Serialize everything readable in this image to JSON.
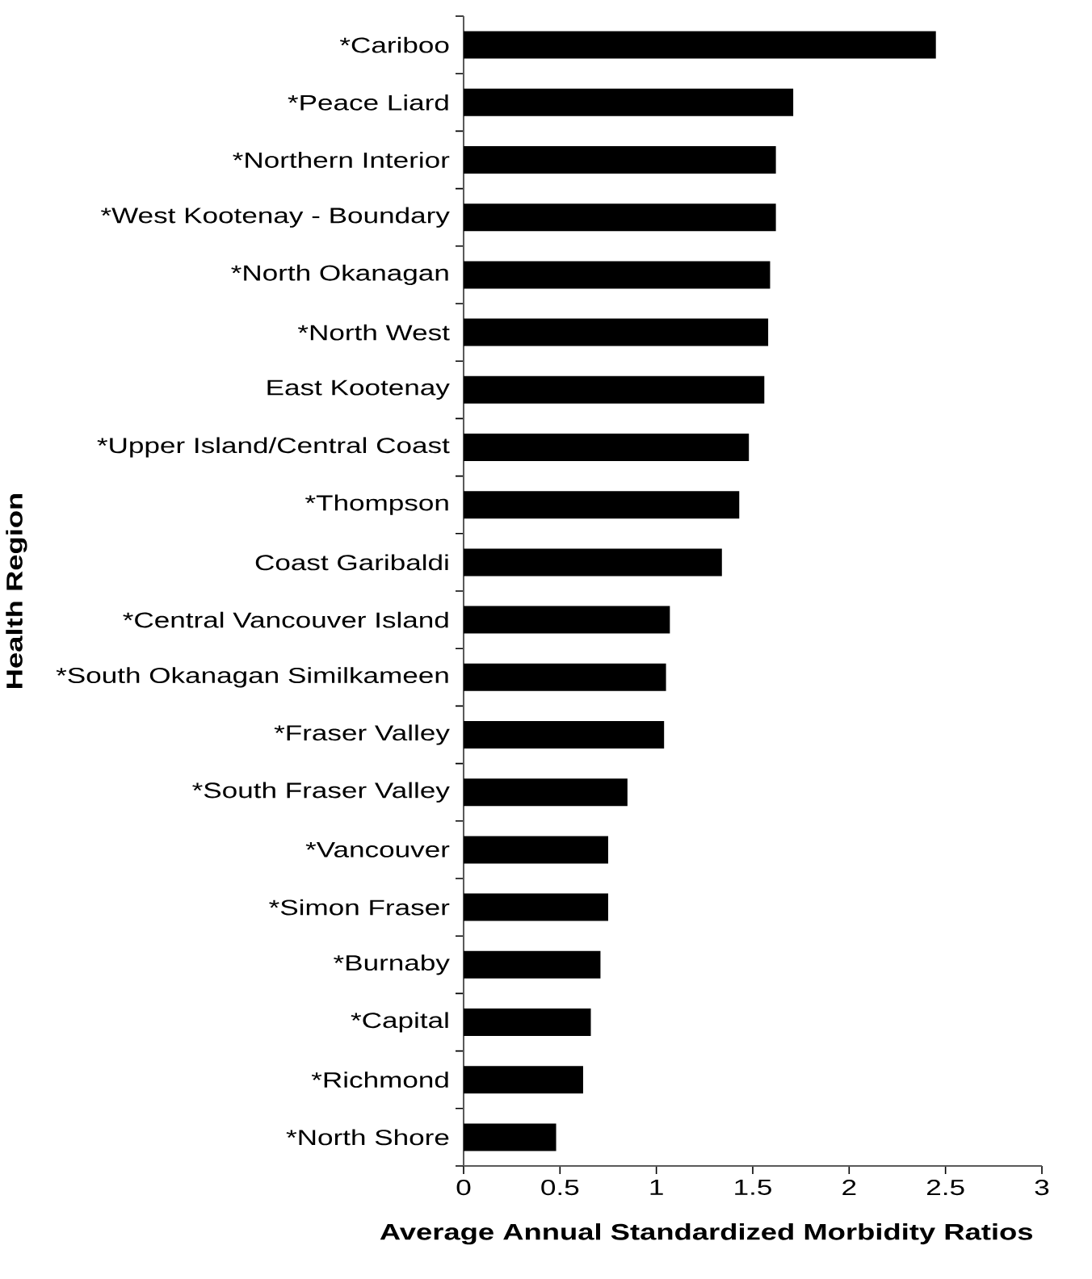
{
  "chart_data": {
    "type": "bar",
    "orientation": "horizontal",
    "xlabel": "Average Annual Standardized Morbidity Ratios",
    "ylabel": "Health Region",
    "categories": [
      "*Cariboo",
      "*Peace Liard",
      "*Northern Interior",
      "*West Kootenay - Boundary",
      "*North Okanagan",
      "*North West",
      "East Kootenay",
      "*Upper Island/Central Coast",
      "*Thompson",
      "Coast Garibaldi",
      "*Central Vancouver Island",
      "*South Okanagan Similkameen",
      "*Fraser Valley",
      "*South Fraser Valley",
      "*Vancouver",
      "*Simon Fraser",
      "*Burnaby",
      "*Capital",
      "*Richmond",
      "*North Shore"
    ],
    "values": [
      2.45,
      1.71,
      1.62,
      1.62,
      1.59,
      1.58,
      1.56,
      1.48,
      1.43,
      1.34,
      1.07,
      1.05,
      1.04,
      0.85,
      0.75,
      0.75,
      0.71,
      0.66,
      0.62,
      0.48
    ],
    "color": "#000000",
    "xlim": [
      0,
      3
    ],
    "xticks": [
      0,
      0.5,
      1,
      1.5,
      2,
      2.5,
      3
    ]
  }
}
